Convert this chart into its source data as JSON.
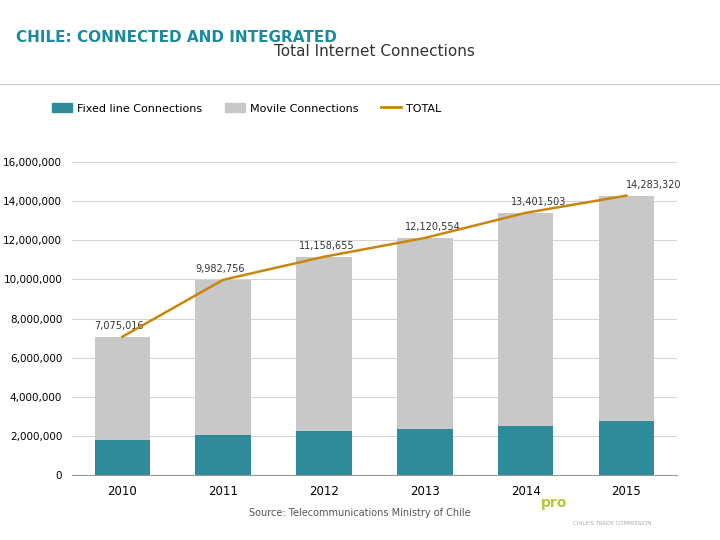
{
  "title": "Total Internet Connections",
  "header": "CHILE: CONNECTED AND INTEGRATED",
  "years": [
    2010,
    2011,
    2012,
    2013,
    2014,
    2015
  ],
  "fixed_line": [
    1800000,
    2050000,
    2250000,
    2350000,
    2520000,
    2750000
  ],
  "mobile": [
    5275016,
    7932756,
    8908655,
    9770554,
    10881503,
    11533320
  ],
  "total": [
    7075016,
    9982756,
    11158655,
    12120554,
    13401503,
    14283320
  ],
  "total_labels": [
    "7,075,016",
    "9,982,756",
    "11,158,655",
    "12,120,554",
    "13,401,503",
    "14,283,320"
  ],
  "fixed_color": "#2E8B9A",
  "mobile_color": "#C8C8C8",
  "total_color": "#C8860A",
  "ylim": [
    0,
    16000000
  ],
  "yticks": [
    0,
    2000000,
    4000000,
    6000000,
    8000000,
    10000000,
    12000000,
    14000000,
    16000000
  ],
  "background_color": "#FFFFFF",
  "source_text": "Source: Telecommunications Ministry of Chile",
  "legend_fixed": "Fixed line Connections",
  "legend_mobile": "Movile Connections",
  "legend_total": "TOTAL",
  "title_fontsize": 11,
  "header_fontsize": 11,
  "header_color": "#1A8BA0",
  "bar_width": 0.55,
  "teal_box_color": "#2AABB8",
  "procchile_bg": "#4A4A4A",
  "pro_color": "#B8C832",
  "chile_text_color": "#FFFFFF"
}
